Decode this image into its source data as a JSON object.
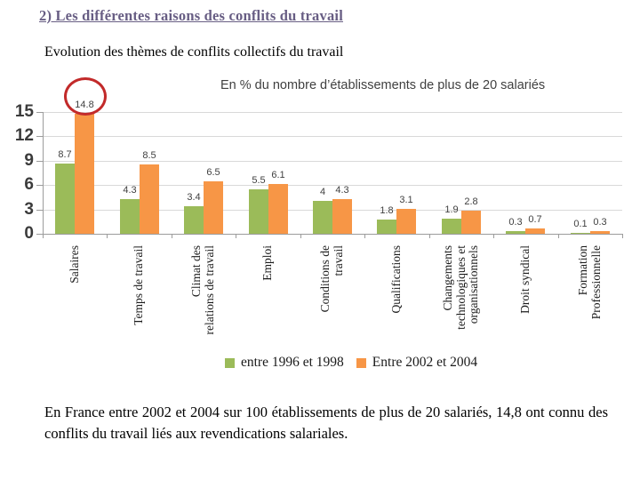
{
  "slide": {
    "title": "2) Les différentes raisons des conflits du travail",
    "subtitle": "Evolution des thèmes de conflits collectifs du travail",
    "body": "En France entre 2002 et 2004 sur 100 établissements de plus de 20 salariés, 14,8 ont connu des conflits du travail liés aux revendications salariales."
  },
  "chart_data": {
    "type": "bar",
    "title": "En % du nombre d’établissements de plus de 20 salariés",
    "categories": [
      "Salaires",
      "Temps de travail",
      "Climat des\nrelations de travail",
      "Emploi",
      "Conditions de\ntravail",
      "Qualifications",
      "Changements\ntechnologiques et\norganisationnels",
      "Droit syndical",
      "Formation\nProfessionnelle"
    ],
    "series": [
      {
        "key": "1996-1998",
        "name": "entre 1996 et 1998",
        "color": "#9bbb59",
        "values": [
          8.7,
          4.3,
          3.4,
          5.5,
          4,
          1.8,
          1.9,
          0.3,
          0.1
        ],
        "labels": [
          "8.7",
          "4.3",
          "3.4",
          "5.5",
          "4",
          "1.8",
          "1.9",
          "0.3",
          "0.1"
        ]
      },
      {
        "key": "2002-2004",
        "name": "Entre 2002 et 2004",
        "color": "#f79646",
        "values": [
          14.8,
          8.5,
          6.5,
          6.1,
          4.3,
          3.1,
          2.8,
          0.7,
          0.3
        ],
        "labels": [
          "14.8",
          "8.5",
          "6.5",
          "6.1",
          "4.3",
          "3.1",
          "2.8",
          "0.7",
          "0.3"
        ]
      }
    ],
    "yticks": [
      0,
      3,
      6,
      9,
      12,
      15
    ],
    "ylim": [
      0,
      15
    ],
    "grid": true,
    "legend_position": "bottom",
    "annotation": {
      "shape": "ellipse",
      "around_value": "14.8",
      "color": "#c22a2a"
    }
  }
}
